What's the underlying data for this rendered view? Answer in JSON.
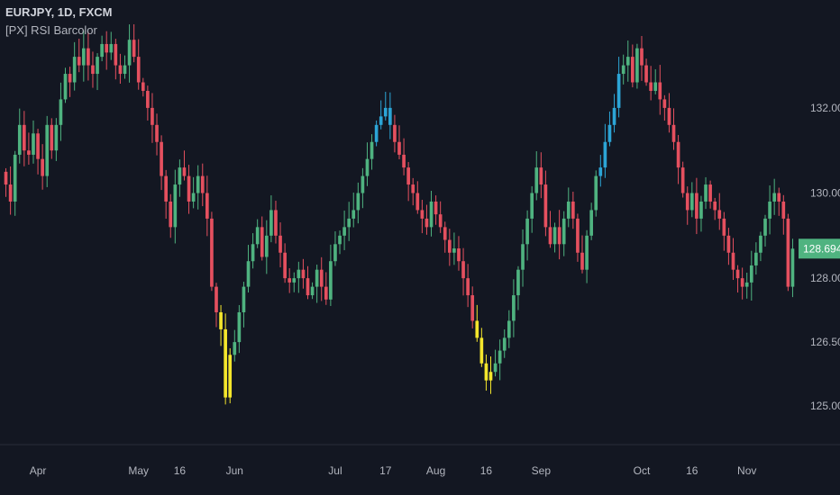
{
  "header": {
    "symbol": "EURJPY, 1D, FXCM",
    "indicator": "[PX] RSI Barcolor"
  },
  "colors": {
    "background": "#131722",
    "up": "#4fb380",
    "down": "#e5505f",
    "overbought": "#2ca5d6",
    "oversold": "#f4e62c",
    "axis": "#b2b5be"
  },
  "chart_data": {
    "type": "candlestick",
    "ylim": [
      124.6,
      133.9
    ],
    "y_ticks": [
      "132.000",
      "130.000",
      "128.000",
      "126.500",
      "125.000"
    ],
    "y_tick_values": [
      132.0,
      130.0,
      128.0,
      126.5,
      125.0
    ],
    "last_price": "128.694",
    "last_price_value": 128.694,
    "x_ticks": [
      {
        "label": "Apr",
        "index": 7
      },
      {
        "label": "May",
        "index": 29
      },
      {
        "label": "16",
        "index": 38
      },
      {
        "label": "Jun",
        "index": 50
      },
      {
        "label": "Jul",
        "index": 72
      },
      {
        "label": "17",
        "index": 83
      },
      {
        "label": "Aug",
        "index": 94
      },
      {
        "label": "16",
        "index": 105
      },
      {
        "label": "Sep",
        "index": 117
      },
      {
        "label": "Oct",
        "index": 139
      },
      {
        "label": "16",
        "index": 150
      },
      {
        "label": "Nov",
        "index": 162
      }
    ],
    "closes": [
      130.2,
      129.8,
      130.9,
      131.6,
      131.0,
      130.9,
      131.4,
      130.8,
      130.4,
      131.6,
      131.0,
      131.6,
      132.2,
      132.8,
      132.6,
      133.2,
      133.0,
      133.4,
      133.0,
      132.8,
      133.2,
      133.5,
      133.3,
      133.5,
      133.0,
      132.8,
      133.0,
      133.6,
      133.2,
      132.6,
      132.4,
      132.0,
      131.6,
      131.2,
      130.4,
      129.8,
      129.2,
      130.2,
      130.6,
      130.4,
      129.8,
      130.0,
      130.4,
      130.0,
      129.4,
      127.8,
      127.2,
      126.8,
      125.2,
      126.2,
      126.5,
      127.2,
      127.8,
      128.4,
      128.8,
      129.2,
      128.5,
      129.0,
      129.6,
      129.0,
      128.6,
      128.0,
      127.9,
      128.0,
      128.2,
      128.0,
      127.6,
      127.8,
      128.2,
      127.8,
      127.5,
      128.4,
      128.8,
      129.0,
      129.2,
      129.4,
      129.6,
      130.0,
      130.4,
      130.8,
      131.2,
      131.6,
      131.8,
      132.0,
      131.6,
      131.2,
      130.9,
      130.6,
      130.2,
      130.0,
      129.6,
      129.4,
      129.2,
      129.8,
      129.5,
      129.2,
      128.9,
      128.6,
      128.7,
      128.4,
      128.0,
      127.6,
      127.0,
      126.6,
      126.0,
      125.6,
      125.8,
      126.0,
      126.3,
      126.6,
      127.0,
      127.6,
      128.2,
      128.8,
      129.4,
      130.0,
      130.6,
      130.2,
      129.2,
      128.8,
      129.2,
      128.8,
      129.4,
      129.8,
      129.4,
      128.6,
      128.2,
      129.0,
      129.6,
      130.4,
      130.6,
      131.2,
      131.6,
      132.0,
      132.8,
      133.0,
      133.2,
      132.6,
      133.4,
      133.0,
      132.6,
      132.4,
      132.6,
      132.2,
      132.0,
      131.6,
      131.2,
      130.6,
      130.0,
      129.6,
      130.0,
      129.4,
      129.8,
      130.2,
      129.8,
      129.6,
      129.4,
      129.0,
      128.6,
      128.2,
      128.0,
      127.8,
      127.9,
      128.3,
      128.6,
      129.0,
      129.4,
      129.8,
      130.0,
      129.8,
      129.4,
      127.8,
      128.694
    ],
    "rsi_zones": [
      {
        "start": 47,
        "end": 49,
        "zone": "oversold"
      },
      {
        "start": 103,
        "end": 106,
        "zone": "oversold"
      },
      {
        "start": 81,
        "end": 84,
        "zone": "overbought"
      },
      {
        "start": 130,
        "end": 134,
        "zone": "overbought"
      }
    ]
  }
}
